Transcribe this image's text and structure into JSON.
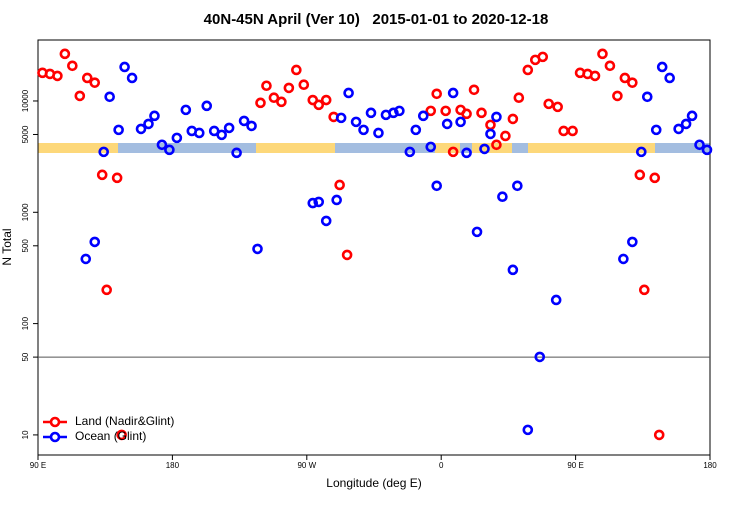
{
  "chart_data": {
    "type": "scatter",
    "title": "40N-45N April (Ver 10)   2015-01-01 to 2020-12-18",
    "x_label": "Longitude (deg E)",
    "y_label": "N Total",
    "xlim": [
      90,
      540
    ],
    "xticks": [
      {
        "value": 90,
        "label": "90 E"
      },
      180,
      {
        "value": 270,
        "label": "90 W"
      },
      {
        "value": 360,
        "label": "0"
      },
      {
        "value": 450,
        "label": "90 E"
      },
      {
        "value": 540,
        "label": "180"
      }
    ],
    "ylim": [
      6.6,
      35300
    ],
    "log_y": true,
    "yticks": [
      10,
      50,
      100,
      500,
      1000,
      5000,
      10000
    ],
    "hline": 50,
    "legend": "bottom-left",
    "series": [
      {
        "name": "Land (Nadir&Glint)",
        "color": "#ff0000",
        "x": [
          93,
          98,
          103,
          108,
          113,
          118,
          123,
          128,
          133,
          136,
          143,
          146,
          239,
          243,
          248,
          253,
          258,
          263,
          268,
          274,
          278,
          283,
          288,
          292,
          297,
          353,
          357,
          363,
          368,
          373,
          377,
          382,
          387,
          393,
          397,
          403,
          408,
          412,
          418,
          423,
          428,
          432,
          438,
          442,
          448,
          453,
          458,
          463,
          468,
          473,
          478,
          483,
          488,
          493,
          496,
          503,
          506
        ],
        "values": [
          17900,
          17500,
          16800,
          26500,
          20700,
          11100,
          16100,
          14600,
          2170,
          201,
          2040,
          10,
          9620,
          13700,
          10700,
          9820,
          13100,
          19000,
          14000,
          10200,
          9230,
          10200,
          7190,
          1760,
          414,
          8150,
          11600,
          8150,
          3490,
          8320,
          7660,
          12600,
          7820,
          6100,
          4040,
          4850,
          6900,
          10700,
          19000,
          23400,
          24900,
          9420,
          8850,
          5380,
          5380,
          17900,
          17500,
          16800,
          26500,
          20700,
          11100,
          16100,
          14600,
          2170,
          201,
          2040,
          10
        ]
      },
      {
        "name": "Ocean (Glint)",
        "color": "#0000ff",
        "x": [
          122,
          128,
          134,
          138,
          144,
          148,
          153,
          159,
          164,
          168,
          173,
          178,
          183,
          189,
          193,
          198,
          203,
          208,
          213,
          218,
          223,
          228,
          233,
          237,
          274,
          278,
          283,
          290,
          293,
          298,
          303,
          308,
          313,
          318,
          323,
          328,
          332,
          339,
          343,
          348,
          353,
          357,
          364,
          368,
          373,
          377,
          384,
          389,
          393,
          397,
          401,
          408,
          411,
          418,
          426,
          437,
          482,
          488,
          494,
          498,
          504,
          508,
          513,
          519,
          524,
          528,
          533,
          538
        ],
        "values": [
          381,
          542,
          3490,
          10900,
          5500,
          20200,
          16100,
          5610,
          6220,
          7350,
          4040,
          3640,
          4660,
          8320,
          5380,
          5160,
          9040,
          5380,
          4960,
          5730,
          3420,
          6620,
          5970,
          469,
          1210,
          1240,
          837,
          1290,
          7050,
          11800,
          6490,
          5500,
          7820,
          5160,
          7500,
          7820,
          8150,
          3490,
          5500,
          7350,
          3870,
          1730,
          6220,
          11800,
          6490,
          3420,
          667,
          3710,
          5060,
          7190,
          1380,
          304,
          1730,
          11.1,
          50.2,
          163,
          381,
          542,
          3490,
          10900,
          5500,
          20200,
          16100,
          5610,
          6220,
          7350,
          4040,
          3640
        ]
      }
    ]
  }
}
